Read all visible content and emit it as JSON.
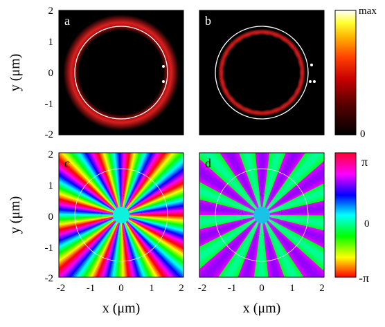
{
  "figure": {
    "panel_labels": [
      "a",
      "b",
      "c",
      "d"
    ],
    "x_axis_label": "x (μm)",
    "y_axis_label": "y (μm)",
    "x_ticks": [
      "-2",
      "-1",
      "0",
      "1",
      "2"
    ],
    "y_ticks": [
      "2",
      "1",
      "0",
      "-1",
      "-2"
    ],
    "colorbar_intensity": {
      "top": "max",
      "bottom": "0"
    },
    "colorbar_phase": {
      "top": "π",
      "middle": "0",
      "bottom": "-π"
    }
  },
  "chart_data": [
    {
      "type": "heatmap",
      "panel": "a",
      "description_quantity": "intensity",
      "xlim": [
        -2,
        2
      ],
      "ylim": [
        -2,
        2
      ],
      "ring_radius": 1.5,
      "features": {
        "intensity_ring_radius": 1.3,
        "lobes": 0
      }
    },
    {
      "type": "heatmap",
      "panel": "b",
      "xlim": [
        -2,
        2
      ],
      "ylim": [
        -2,
        2
      ],
      "ring_radius": 1.5,
      "features": {
        "intensity_ring_radius": 1.3,
        "lobes": 26
      }
    },
    {
      "type": "heatmap",
      "panel": "c",
      "xlim": [
        -2,
        2
      ],
      "ylim": [
        -2,
        2
      ],
      "ring_radius": 1.5,
      "features": {
        "phase_winding": 13,
        "colormap": "hsv"
      }
    },
    {
      "type": "heatmap",
      "panel": "d",
      "xlim": [
        -2,
        2
      ],
      "ylim": [
        -2,
        2
      ],
      "ring_radius": 1.5,
      "features": {
        "phase_winding": 13,
        "colormap": "hsv",
        "standing_wave": true
      }
    }
  ]
}
